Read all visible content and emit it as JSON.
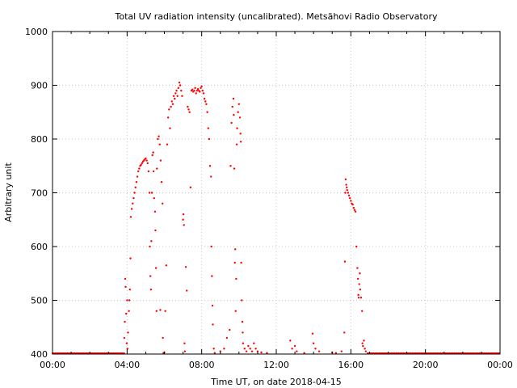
{
  "chart_data": {
    "type": "scatter",
    "title": "Total UV radiation intensity (uncalibrated). Metsähovi Radio Observatory",
    "xlabel": "Time UT, on date 2018-04-15",
    "ylabel": "Arbitrary unit",
    "xlim": [
      0,
      24
    ],
    "ylim": [
      400,
      1000
    ],
    "xticks": [
      0,
      4,
      8,
      12,
      16,
      20,
      24
    ],
    "xtick_labels": [
      "00:00",
      "04:00",
      "08:00",
      "12:00",
      "16:00",
      "20:00",
      "00:00"
    ],
    "yticks": [
      400,
      500,
      600,
      700,
      800,
      900,
      1000
    ],
    "ytick_labels": [
      "400",
      "500",
      "600",
      "700",
      "800",
      "900",
      "1000"
    ],
    "grid": true,
    "point_color": "#ff0000",
    "series": [
      {
        "baseline_value": 400,
        "baseline_ranges": [
          [
            0,
            3.85
          ],
          [
            16.9,
            24
          ]
        ],
        "points": [
          [
            3.85,
            430
          ],
          [
            3.88,
            460
          ],
          [
            3.9,
            540
          ],
          [
            3.92,
            525
          ],
          [
            3.95,
            475
          ],
          [
            3.98,
            420
          ],
          [
            4.0,
            500
          ],
          [
            4.02,
            410
          ],
          [
            4.05,
            440
          ],
          [
            4.1,
            480
          ],
          [
            4.12,
            500
          ],
          [
            4.15,
            520
          ],
          [
            4.18,
            578
          ],
          [
            4.2,
            655
          ],
          [
            4.25,
            670
          ],
          [
            4.3,
            680
          ],
          [
            4.35,
            690
          ],
          [
            4.4,
            700
          ],
          [
            4.45,
            710
          ],
          [
            4.5,
            720
          ],
          [
            4.55,
            730
          ],
          [
            4.6,
            740
          ],
          [
            4.65,
            745
          ],
          [
            4.7,
            750
          ],
          [
            4.75,
            752
          ],
          [
            4.8,
            755
          ],
          [
            4.85,
            758
          ],
          [
            4.9,
            760
          ],
          [
            4.95,
            762
          ],
          [
            5.0,
            764
          ],
          [
            5.05,
            760
          ],
          [
            5.1,
            755
          ],
          [
            5.15,
            740
          ],
          [
            5.2,
            700
          ],
          [
            5.22,
            600
          ],
          [
            5.25,
            545
          ],
          [
            5.28,
            520
          ],
          [
            5.3,
            610
          ],
          [
            5.33,
            700
          ],
          [
            5.36,
            770
          ],
          [
            5.4,
            775
          ],
          [
            5.42,
            740
          ],
          [
            5.45,
            690
          ],
          [
            5.5,
            665
          ],
          [
            5.52,
            630
          ],
          [
            5.55,
            560
          ],
          [
            5.58,
            480
          ],
          [
            5.6,
            745
          ],
          [
            5.65,
            800
          ],
          [
            5.7,
            805
          ],
          [
            5.75,
            790
          ],
          [
            5.78,
            482
          ],
          [
            5.8,
            760
          ],
          [
            5.85,
            720
          ],
          [
            5.9,
            680
          ],
          [
            5.92,
            430
          ],
          [
            5.95,
            402
          ],
          [
            6.0,
            403
          ],
          [
            6.05,
            480
          ],
          [
            6.1,
            565
          ],
          [
            6.15,
            790
          ],
          [
            6.2,
            840
          ],
          [
            6.25,
            855
          ],
          [
            6.3,
            820
          ],
          [
            6.35,
            860
          ],
          [
            6.4,
            870
          ],
          [
            6.45,
            865
          ],
          [
            6.5,
            880
          ],
          [
            6.55,
            875
          ],
          [
            6.6,
            885
          ],
          [
            6.65,
            890
          ],
          [
            6.7,
            880
          ],
          [
            6.75,
            895
          ],
          [
            6.8,
            905
          ],
          [
            6.85,
            900
          ],
          [
            6.9,
            890
          ],
          [
            6.95,
            880
          ],
          [
            7.0,
            650
          ],
          [
            7.02,
            660
          ],
          [
            7.05,
            640
          ],
          [
            7.08,
            420
          ],
          [
            7.1,
            405
          ],
          [
            7.15,
            562
          ],
          [
            7.2,
            518
          ],
          [
            7.25,
            860
          ],
          [
            7.3,
            855
          ],
          [
            7.35,
            850
          ],
          [
            7.4,
            710
          ],
          [
            7.45,
            890
          ],
          [
            7.5,
            892
          ],
          [
            7.55,
            888
          ],
          [
            7.6,
            890
          ],
          [
            7.65,
            895
          ],
          [
            7.7,
            885
          ],
          [
            7.75,
            890
          ],
          [
            7.8,
            893
          ],
          [
            7.85,
            890
          ],
          [
            7.9,
            888
          ],
          [
            7.95,
            895
          ],
          [
            8.0,
            898
          ],
          [
            8.05,
            890
          ],
          [
            8.1,
            885
          ],
          [
            8.15,
            875
          ],
          [
            8.2,
            870
          ],
          [
            8.25,
            865
          ],
          [
            8.3,
            850
          ],
          [
            8.35,
            820
          ],
          [
            8.4,
            800
          ],
          [
            8.45,
            750
          ],
          [
            8.5,
            730
          ],
          [
            8.52,
            600
          ],
          [
            8.55,
            545
          ],
          [
            8.58,
            490
          ],
          [
            8.6,
            455
          ],
          [
            8.65,
            410
          ],
          [
            8.7,
            402
          ],
          [
            9.0,
            405
          ],
          [
            9.2,
            410
          ],
          [
            9.35,
            430
          ],
          [
            9.5,
            445
          ],
          [
            9.55,
            750
          ],
          [
            9.6,
            830
          ],
          [
            9.65,
            860
          ],
          [
            9.7,
            875
          ],
          [
            9.72,
            845
          ],
          [
            9.75,
            745
          ],
          [
            9.78,
            570
          ],
          [
            9.8,
            595
          ],
          [
            9.82,
            480
          ],
          [
            9.85,
            540
          ],
          [
            9.88,
            790
          ],
          [
            9.9,
            820
          ],
          [
            9.95,
            850
          ],
          [
            10.0,
            865
          ],
          [
            10.05,
            840
          ],
          [
            10.08,
            810
          ],
          [
            10.1,
            795
          ],
          [
            10.12,
            570
          ],
          [
            10.15,
            500
          ],
          [
            10.18,
            460
          ],
          [
            10.2,
            440
          ],
          [
            10.22,
            420
          ],
          [
            10.3,
            410
          ],
          [
            10.4,
            405
          ],
          [
            10.5,
            415
          ],
          [
            10.6,
            410
          ],
          [
            10.7,
            405
          ],
          [
            10.8,
            420
          ],
          [
            10.9,
            410
          ],
          [
            11.0,
            405
          ],
          [
            11.2,
            403
          ],
          [
            11.5,
            402
          ],
          [
            12.75,
            425
          ],
          [
            12.85,
            410
          ],
          [
            13.0,
            415
          ],
          [
            13.1,
            405
          ],
          [
            13.5,
            402
          ],
          [
            13.95,
            438
          ],
          [
            14.0,
            420
          ],
          [
            14.1,
            410
          ],
          [
            14.3,
            405
          ],
          [
            15.0,
            403
          ],
          [
            15.2,
            402
          ],
          [
            15.5,
            405
          ],
          [
            15.65,
            440
          ],
          [
            15.68,
            572
          ],
          [
            15.7,
            700
          ],
          [
            15.72,
            725
          ],
          [
            15.75,
            715
          ],
          [
            15.78,
            710
          ],
          [
            15.8,
            705
          ],
          [
            15.85,
            700
          ],
          [
            15.9,
            695
          ],
          [
            15.95,
            690
          ],
          [
            16.0,
            685
          ],
          [
            16.05,
            680
          ],
          [
            16.1,
            678
          ],
          [
            16.15,
            672
          ],
          [
            16.2,
            668
          ],
          [
            16.25,
            665
          ],
          [
            16.3,
            600
          ],
          [
            16.35,
            560
          ],
          [
            16.38,
            540
          ],
          [
            16.4,
            510
          ],
          [
            16.42,
            505
          ],
          [
            16.45,
            530
          ],
          [
            16.48,
            550
          ],
          [
            16.5,
            520
          ],
          [
            16.55,
            505
          ],
          [
            16.6,
            480
          ],
          [
            16.62,
            420
          ],
          [
            16.65,
            415
          ],
          [
            16.7,
            425
          ],
          [
            16.75,
            410
          ],
          [
            16.8,
            405
          ]
        ]
      }
    ]
  }
}
